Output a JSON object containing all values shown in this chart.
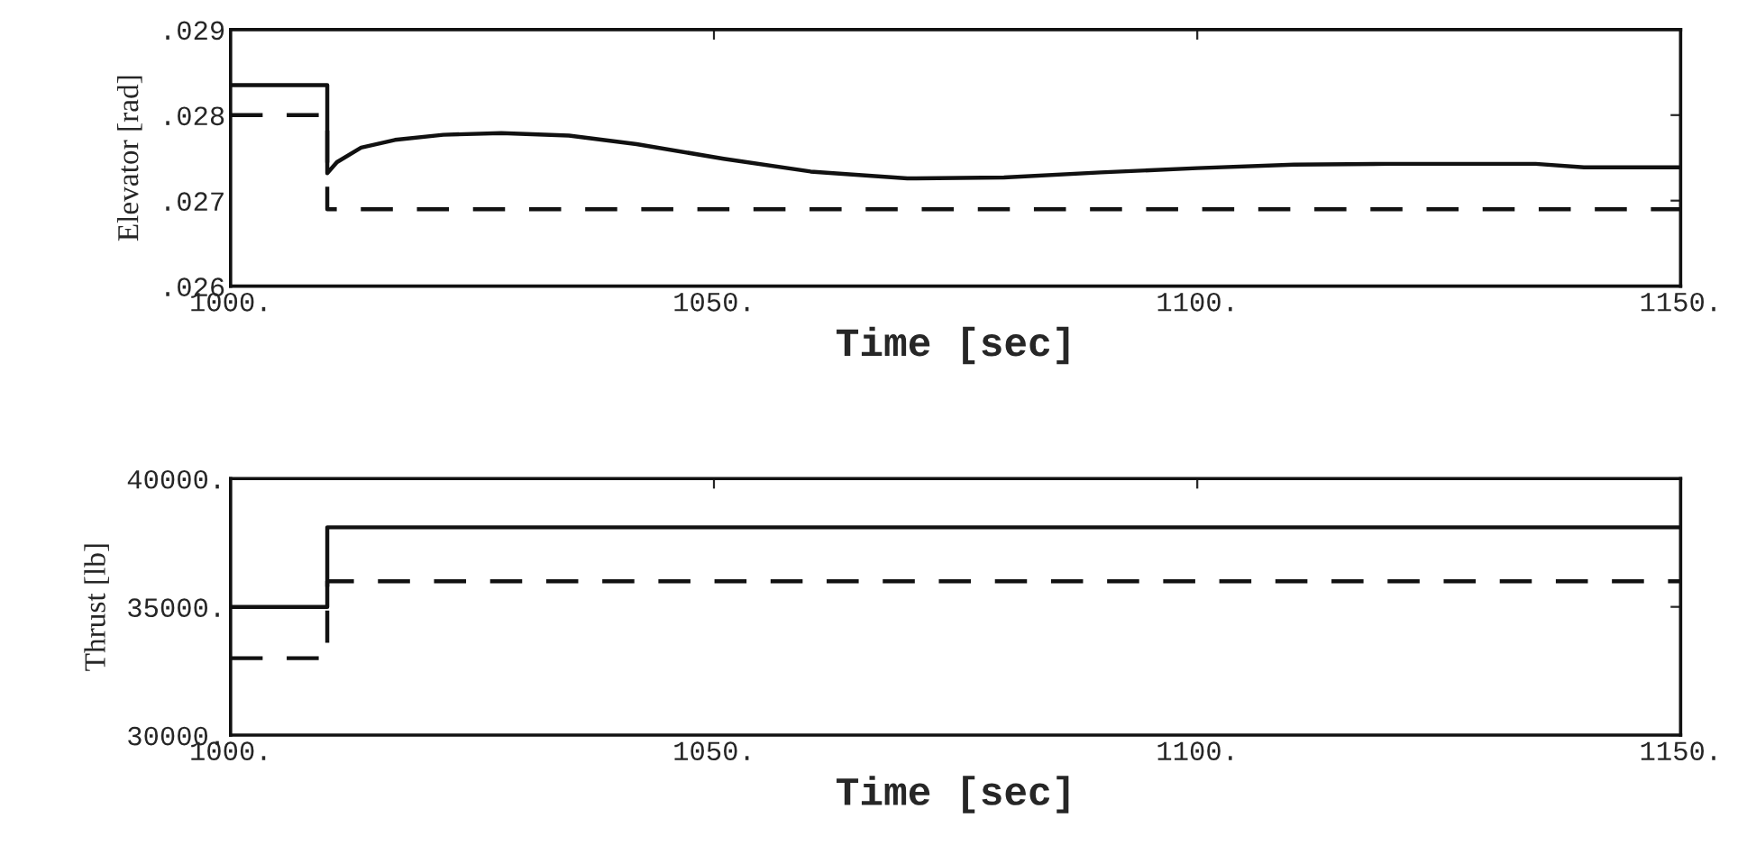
{
  "chart_data": [
    {
      "type": "line",
      "xlabel": "Time [sec]",
      "ylabel": "Elevator [rad]",
      "xlim": [
        1000,
        1150
      ],
      "ylim": [
        0.026,
        0.029
      ],
      "xticks": [
        {
          "value": 1000,
          "label": "1000."
        },
        {
          "value": 1050,
          "label": "1050."
        },
        {
          "value": 1100,
          "label": "1100."
        },
        {
          "value": 1150,
          "label": "1150."
        }
      ],
      "yticks": [
        {
          "value": 0.026,
          "label": ".026"
        },
        {
          "value": 0.027,
          "label": ".027"
        },
        {
          "value": 0.028,
          "label": ".028"
        },
        {
          "value": 0.029,
          "label": ".029"
        }
      ],
      "grid": false,
      "legend": false,
      "series": [
        {
          "color": "#111111",
          "line_style": "solid",
          "x": [
            1000,
            1010,
            1010,
            1011,
            1013.5,
            1017,
            1022,
            1028,
            1035,
            1042,
            1051,
            1060,
            1070,
            1080,
            1090,
            1100,
            1110,
            1120,
            1135,
            1140,
            1150
          ],
          "values": [
            0.02835,
            0.02835,
            0.02732,
            0.02745,
            0.02762,
            0.02771,
            0.02777,
            0.02779,
            0.02776,
            0.02766,
            0.02749,
            0.02734,
            0.02726,
            0.02727,
            0.02733,
            0.02738,
            0.02742,
            0.02743,
            0.02743,
            0.02739,
            0.02739
          ]
        },
        {
          "color": "#111111",
          "line_style": "dashed",
          "x": [
            1000,
            1010,
            1010,
            1150
          ],
          "values": [
            0.028,
            0.028,
            0.0269,
            0.0269
          ]
        }
      ]
    },
    {
      "type": "line",
      "xlabel": "Time [sec]",
      "ylabel": "Thrust [lb]",
      "xlim": [
        1000,
        1150
      ],
      "ylim": [
        30000,
        40000
      ],
      "xticks": [
        {
          "value": 1000,
          "label": "1000."
        },
        {
          "value": 1050,
          "label": "1050."
        },
        {
          "value": 1100,
          "label": "1100."
        },
        {
          "value": 1150,
          "label": "1150."
        }
      ],
      "yticks": [
        {
          "value": 30000,
          "label": "30000."
        },
        {
          "value": 35000,
          "label": "35000."
        },
        {
          "value": 40000,
          "label": "40000."
        }
      ],
      "grid": false,
      "legend": false,
      "series": [
        {
          "color": "#111111",
          "line_style": "solid",
          "x": [
            1000,
            1010,
            1010,
            1150
          ],
          "values": [
            35000,
            35000,
            38100,
            38100
          ]
        },
        {
          "color": "#111111",
          "line_style": "dashed",
          "x": [
            1000,
            1010,
            1010,
            1150
          ],
          "values": [
            33000,
            33000,
            36000,
            36000
          ]
        }
      ]
    }
  ]
}
